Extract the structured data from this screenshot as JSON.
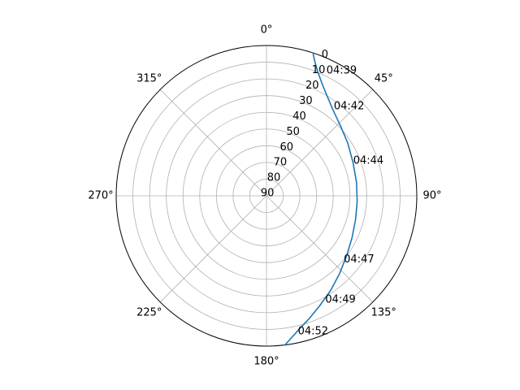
{
  "chart_data": {
    "type": "line",
    "projection": "polar",
    "theta_zero_location": "N",
    "theta_direction": "clockwise",
    "radial_axis": {
      "name": "elevation",
      "range": [
        90,
        0
      ],
      "ticks": [
        0,
        10,
        20,
        30,
        40,
        50,
        60,
        70,
        80,
        90
      ],
      "tick_labels": [
        "0",
        "10",
        "20",
        "30",
        "40",
        "50",
        "60",
        "70",
        "80",
        "90"
      ],
      "label_angle": 22.5
    },
    "angular_axis": {
      "ticks": [
        0,
        45,
        90,
        135,
        180,
        225,
        270,
        315
      ],
      "tick_labels": [
        "0°",
        "45°",
        "90°",
        "135°",
        "180°",
        "225°",
        "270°",
        "315°"
      ]
    },
    "grid": true,
    "colors": {
      "line": "#1f77b4",
      "grid": "#b0b0b0",
      "frame": "#000000"
    },
    "series": [
      {
        "points": [
          {
            "az": 18.0,
            "el": 0.0
          },
          {
            "az": 20.0,
            "el": 5.0
          },
          {
            "az": 22.7,
            "el": 10.0
          },
          {
            "az": 26.3,
            "el": 15.0
          },
          {
            "az": 31.2,
            "el": 20.0
          },
          {
            "az": 37.8,
            "el": 25.0
          },
          {
            "az": 46.5,
            "el": 29.0
          },
          {
            "az": 57.0,
            "el": 32.0
          },
          {
            "az": 69.0,
            "el": 34.5
          },
          {
            "az": 81.5,
            "el": 35.5
          },
          {
            "az": 93.6,
            "el": 35.6
          },
          {
            "az": 105.0,
            "el": 34.8
          },
          {
            "az": 116.0,
            "el": 33.0
          },
          {
            "az": 127.0,
            "el": 30.0
          },
          {
            "az": 137.0,
            "el": 26.0
          },
          {
            "az": 146.0,
            "el": 21.5
          },
          {
            "az": 154.0,
            "el": 17.0
          },
          {
            "az": 161.0,
            "el": 12.0
          },
          {
            "az": 166.0,
            "el": 8.0
          },
          {
            "az": 171.0,
            "el": 2.5
          },
          {
            "az": 173.0,
            "el": 0.0
          }
        ]
      }
    ],
    "annotations": [
      {
        "text": "04:39",
        "az": 25.6,
        "el": 7.0
      },
      {
        "text": "04:42",
        "az": 37.0,
        "el": 23.0
      },
      {
        "text": "04:44",
        "az": 68.0,
        "el": 34.0
      },
      {
        "text": "04:47",
        "az": 129.5,
        "el": 30.0
      },
      {
        "text": "04:49",
        "az": 150.5,
        "el": 18.5
      },
      {
        "text": "04:52",
        "az": 167.0,
        "el": 6.5
      }
    ]
  }
}
